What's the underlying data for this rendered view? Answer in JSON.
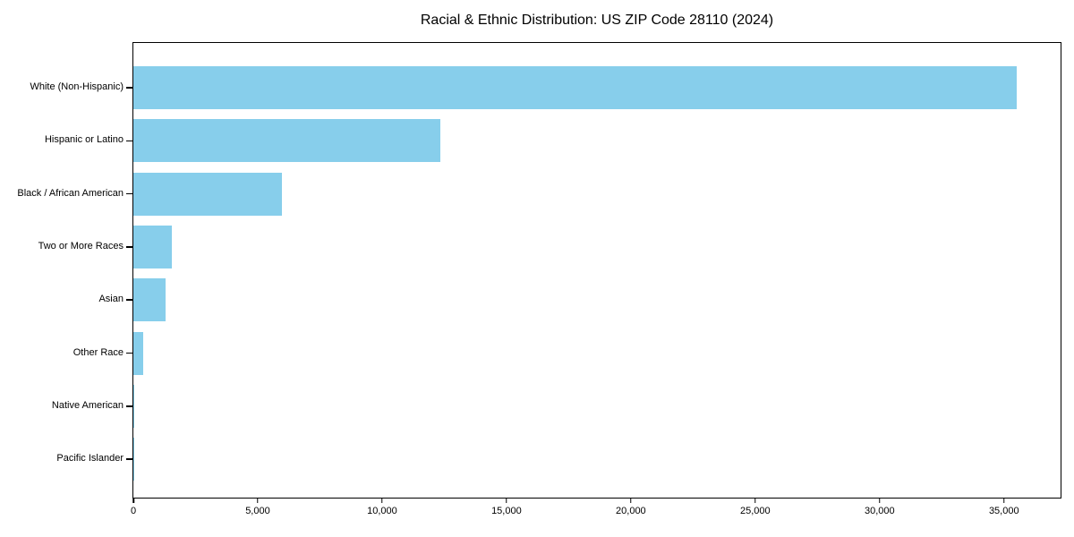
{
  "title": "Racial & Ethnic Distribution: US ZIP Code 28110 (2024)",
  "chart_data": {
    "type": "bar",
    "orientation": "horizontal",
    "title": "Racial & Ethnic Distribution: US ZIP Code 28110 (2024)",
    "xlabel": "",
    "ylabel": "",
    "categories": [
      "White (Non-Hispanic)",
      "Hispanic or Latino",
      "Black / African American",
      "Two or More Races",
      "Asian",
      "Other Race",
      "Native American",
      "Pacific Islander"
    ],
    "values": [
      35500,
      12330,
      5990,
      1560,
      1290,
      395,
      50,
      20
    ],
    "xlim": [
      0,
      37275
    ],
    "x_ticks": [
      0,
      5000,
      10000,
      15000,
      20000,
      25000,
      30000,
      35000
    ],
    "x_tick_labels": [
      "0",
      "5,000",
      "10,000",
      "15,000",
      "20,000",
      "25,000",
      "30,000",
      "35,000"
    ],
    "bar_color": "#87CEEB",
    "axis_color": "#000000",
    "background_color": "#ffffff",
    "grid": false,
    "legend": "none"
  }
}
